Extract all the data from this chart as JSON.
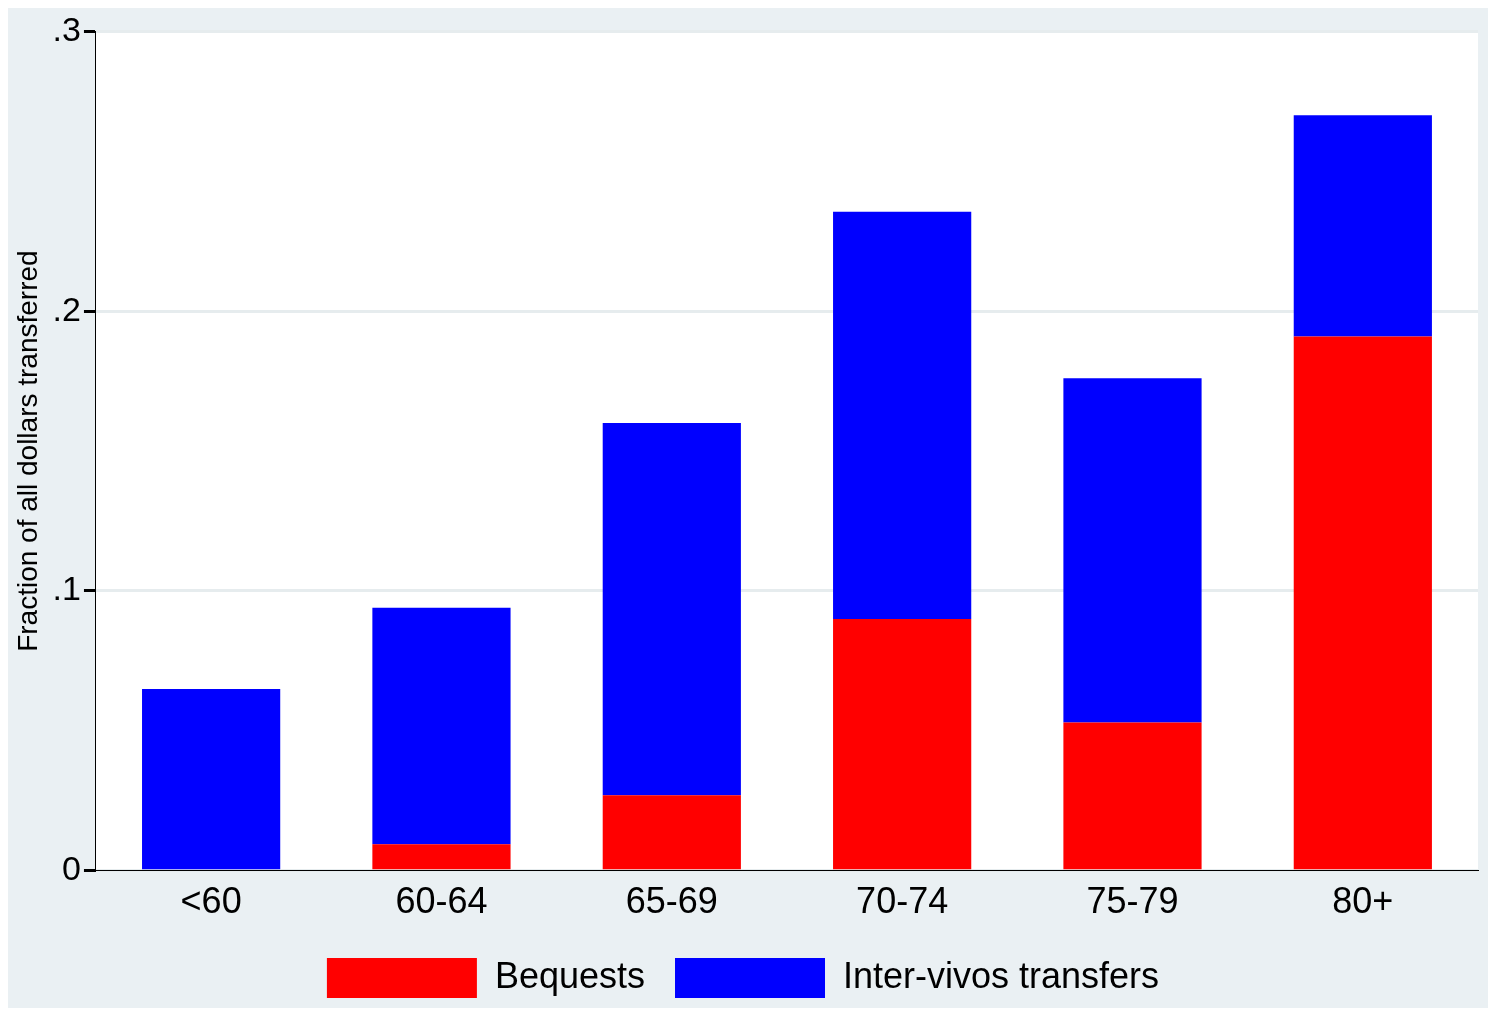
{
  "chart_data": {
    "type": "bar",
    "stacked": true,
    "ylabel": "Fraction of all dollars transferred",
    "categories": [
      "<60",
      "60-64",
      "65-69",
      "70-74",
      "75-79",
      "80+"
    ],
    "series": [
      {
        "name": "Bequests",
        "color": "#ff0000",
        "values": [
          0,
          0.0095,
          0.027,
          0.09,
          0.053,
          0.191
        ]
      },
      {
        "name": "Inter-vivos transfers",
        "color": "#0000ff",
        "values": [
          0.065,
          0.0845,
          0.133,
          0.1455,
          0.123,
          0.079
        ]
      }
    ],
    "ylim": [
      0,
      0.3
    ],
    "yticks": [
      {
        "value": 0,
        "label": "0"
      },
      {
        "value": 0.1,
        "label": ".1"
      },
      {
        "value": 0.2,
        "label": ".2"
      },
      {
        "value": 0.3,
        "label": ".3"
      }
    ],
    "grid": "y",
    "legend": "bottom"
  }
}
